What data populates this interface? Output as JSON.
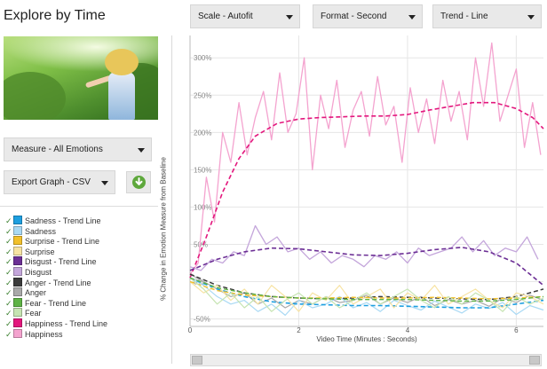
{
  "page": {
    "title": "Explore by Time"
  },
  "controls": {
    "scale": "Scale - Autofit",
    "format": "Format - Second",
    "trend": "Trend - Line",
    "measure": "Measure - All Emotions",
    "export": "Export Graph - CSV"
  },
  "legend": [
    {
      "label": "Sadness - Trend Line",
      "color": "#1d9fe0"
    },
    {
      "label": "Sadness",
      "color": "#a9d9f4"
    },
    {
      "label": "Surprise - Trend Line",
      "color": "#f2c02b"
    },
    {
      "label": "Surprise",
      "color": "#f7e3a3"
    },
    {
      "label": "Disgust - Trend Line",
      "color": "#6c2f95"
    },
    {
      "label": "Disgust",
      "color": "#c4a6db"
    },
    {
      "label": "Anger - Trend Line",
      "color": "#3b3b3b"
    },
    {
      "label": "Anger",
      "color": "#a9a9a9"
    },
    {
      "label": "Fear - Trend Line",
      "color": "#5eb345"
    },
    {
      "label": "Fear",
      "color": "#c6e4b2"
    },
    {
      "label": "Happiness - Trend Line",
      "color": "#e3177d"
    },
    {
      "label": "Happiness",
      "color": "#f4a3cf"
    }
  ],
  "chart_data": {
    "type": "line",
    "ylabel": "% Change in Emotion Measure from Baseline",
    "xlabel": "Video Time (Minutes : Seconds)",
    "ylim": [
      -60,
      330
    ],
    "xlim": [
      0,
      6.5
    ],
    "y_ticks": [
      "-50%",
      "0%",
      "50%",
      "100%",
      "150%",
      "200%",
      "250%",
      "300%"
    ],
    "x_ticks": [
      "0",
      "2",
      "4",
      "6"
    ],
    "grid": true,
    "series": [
      {
        "name": "Happiness",
        "color": "#f4a3cf",
        "style": "solid",
        "width": 1.3,
        "x": [
          0,
          0.15,
          0.3,
          0.45,
          0.6,
          0.75,
          0.9,
          1.05,
          1.2,
          1.35,
          1.5,
          1.65,
          1.8,
          1.95,
          2.1,
          2.25,
          2.4,
          2.55,
          2.7,
          2.85,
          3.0,
          3.15,
          3.3,
          3.45,
          3.6,
          3.75,
          3.9,
          4.05,
          4.2,
          4.35,
          4.5,
          4.65,
          4.8,
          4.95,
          5.1,
          5.25,
          5.4,
          5.55,
          5.7,
          5.85,
          6.0,
          6.15,
          6.3,
          6.45
        ],
        "y": [
          10,
          25,
          140,
          80,
          200,
          160,
          240,
          170,
          220,
          255,
          190,
          280,
          200,
          225,
          300,
          150,
          250,
          205,
          270,
          180,
          230,
          255,
          195,
          275,
          210,
          235,
          160,
          260,
          200,
          245,
          185,
          270,
          215,
          255,
          190,
          300,
          235,
          320,
          215,
          250,
          285,
          180,
          240,
          170
        ]
      },
      {
        "name": "Happiness - Trend Line",
        "color": "#e3177d",
        "style": "dashed",
        "width": 1.6,
        "x": [
          0,
          0.3,
          0.6,
          0.9,
          1.2,
          1.6,
          2.0,
          2.4,
          2.8,
          3.2,
          3.6,
          4.0,
          4.4,
          4.8,
          5.2,
          5.6,
          6.0,
          6.3,
          6.5
        ],
        "y": [
          5,
          60,
          120,
          165,
          195,
          212,
          218,
          220,
          221,
          222,
          222,
          224,
          230,
          235,
          240,
          240,
          232,
          220,
          205
        ]
      },
      {
        "name": "Disgust",
        "color": "#c4a6db",
        "style": "solid",
        "width": 1.3,
        "x": [
          0,
          0.2,
          0.4,
          0.6,
          0.8,
          1.0,
          1.2,
          1.4,
          1.6,
          1.8,
          2.0,
          2.2,
          2.4,
          2.6,
          2.8,
          3.0,
          3.2,
          3.4,
          3.6,
          3.8,
          4.0,
          4.2,
          4.4,
          4.6,
          4.8,
          5.0,
          5.2,
          5.4,
          5.6,
          5.8,
          6.0,
          6.2,
          6.4
        ],
        "y": [
          20,
          15,
          30,
          25,
          40,
          35,
          75,
          50,
          60,
          40,
          45,
          30,
          40,
          25,
          35,
          30,
          20,
          35,
          30,
          40,
          25,
          45,
          35,
          40,
          45,
          60,
          40,
          55,
          35,
          45,
          40,
          60,
          30
        ]
      },
      {
        "name": "Disgust - Trend Line",
        "color": "#6c2f95",
        "style": "dashed",
        "width": 1.6,
        "x": [
          0,
          0.5,
          1.0,
          1.5,
          2.0,
          2.5,
          3.0,
          3.5,
          4.0,
          4.5,
          5.0,
          5.5,
          6.0,
          6.5
        ],
        "y": [
          15,
          30,
          40,
          45,
          44,
          40,
          36,
          35,
          38,
          43,
          46,
          40,
          25,
          -5
        ]
      },
      {
        "name": "Anger",
        "color": "#a9a9a9",
        "style": "solid",
        "width": 1.2,
        "x": [
          0,
          0.25,
          0.5,
          0.75,
          1.0,
          1.25,
          1.5,
          1.75,
          2.0,
          2.25,
          2.5,
          2.75,
          3.0,
          3.25,
          3.5,
          3.75,
          4.0,
          4.25,
          4.5,
          4.75,
          5.0,
          5.25,
          5.5,
          5.75,
          6.0,
          6.25,
          6.5
        ],
        "y": [
          10,
          0,
          -10,
          -20,
          -15,
          -30,
          -22,
          -35,
          -25,
          -30,
          -20,
          -28,
          -25,
          -18,
          -30,
          -22,
          -28,
          -20,
          -32,
          -24,
          -30,
          -25,
          -33,
          -22,
          -28,
          -18,
          -25
        ]
      },
      {
        "name": "Anger - Trend Line",
        "color": "#3b3b3b",
        "style": "dashed",
        "width": 1.5,
        "x": [
          0,
          0.5,
          1.0,
          1.5,
          2.0,
          2.5,
          3.0,
          3.5,
          4.0,
          4.5,
          5.0,
          5.5,
          6.0,
          6.5
        ],
        "y": [
          10,
          -5,
          -15,
          -20,
          -22,
          -23,
          -22,
          -20,
          -21,
          -22,
          -23,
          -24,
          -20,
          -10
        ]
      },
      {
        "name": "Sadness",
        "color": "#a9d9f4",
        "style": "solid",
        "width": 1.2,
        "x": [
          0,
          0.25,
          0.5,
          0.75,
          1.0,
          1.25,
          1.5,
          1.75,
          2.0,
          2.25,
          2.5,
          2.75,
          3.0,
          3.25,
          3.5,
          3.75,
          4.0,
          4.25,
          4.5,
          4.75,
          5.0,
          5.25,
          5.5,
          5.75,
          6.0,
          6.25,
          6.5
        ],
        "y": [
          5,
          -5,
          -20,
          -30,
          -25,
          -40,
          -30,
          -45,
          -25,
          -35,
          -30,
          -20,
          -35,
          -28,
          -40,
          -25,
          -32,
          -38,
          -26,
          -34,
          -42,
          -30,
          -36,
          -28,
          -44,
          -32,
          -38
        ]
      },
      {
        "name": "Sadness - Trend Line",
        "color": "#1d9fe0",
        "style": "dashed",
        "width": 1.6,
        "x": [
          0,
          0.5,
          1.0,
          1.5,
          2.0,
          2.5,
          3.0,
          3.5,
          4.0,
          4.5,
          5.0,
          5.5,
          6.0,
          6.5
        ],
        "y": [
          5,
          -10,
          -20,
          -27,
          -30,
          -31,
          -32,
          -32,
          -33,
          -34,
          -35,
          -35,
          -30,
          -25
        ]
      },
      {
        "name": "Surprise",
        "color": "#f7e3a3",
        "style": "solid",
        "width": 1.2,
        "x": [
          0,
          0.25,
          0.5,
          0.75,
          1.0,
          1.25,
          1.5,
          1.75,
          2.0,
          2.25,
          2.5,
          2.75,
          3.0,
          3.25,
          3.5,
          3.75,
          4.0,
          4.25,
          4.5,
          4.75,
          5.0,
          5.25,
          5.5,
          5.75,
          6.0,
          6.25,
          6.5
        ],
        "y": [
          0,
          -15,
          -5,
          -25,
          -10,
          -30,
          -5,
          -20,
          -40,
          -15,
          -25,
          -5,
          -30,
          -20,
          -10,
          -35,
          -15,
          -25,
          -5,
          -30,
          -20,
          -10,
          -25,
          -35,
          -15,
          -20,
          -30
        ]
      },
      {
        "name": "Surprise - Trend Line",
        "color": "#f2c02b",
        "style": "dashed",
        "width": 1.4,
        "x": [
          0,
          0.5,
          1.0,
          1.5,
          2.0,
          2.5,
          3.0,
          3.5,
          4.0,
          4.5,
          5.0,
          5.5,
          6.0,
          6.5
        ],
        "y": [
          0,
          -12,
          -18,
          -20,
          -22,
          -22,
          -21,
          -22,
          -22,
          -21,
          -22,
          -23,
          -22,
          -20
        ]
      },
      {
        "name": "Fear",
        "color": "#c6e4b2",
        "style": "solid",
        "width": 1.2,
        "x": [
          0,
          0.25,
          0.5,
          0.75,
          1.0,
          1.25,
          1.5,
          1.75,
          2.0,
          2.25,
          2.5,
          2.75,
          3.0,
          3.25,
          3.5,
          3.75,
          4.0,
          4.25,
          4.5,
          4.75,
          5.0,
          5.25,
          5.5,
          5.75,
          6.0,
          6.25,
          6.5
        ],
        "y": [
          5,
          -10,
          -30,
          -15,
          -35,
          -20,
          -40,
          -25,
          -15,
          -30,
          -20,
          -35,
          -25,
          -15,
          -30,
          -20,
          -10,
          -25,
          -35,
          -20,
          -30,
          -15,
          -25,
          -40,
          -20,
          -30,
          -22
        ]
      },
      {
        "name": "Fear - Trend Line",
        "color": "#5eb345",
        "style": "dashed",
        "width": 1.4,
        "x": [
          0,
          0.5,
          1.0,
          1.5,
          2.0,
          2.5,
          3.0,
          3.5,
          4.0,
          4.5,
          5.0,
          5.5,
          6.0,
          6.5
        ],
        "y": [
          5,
          -8,
          -15,
          -20,
          -22,
          -23,
          -24,
          -24,
          -24,
          -25,
          -26,
          -26,
          -24,
          -20
        ]
      }
    ]
  }
}
